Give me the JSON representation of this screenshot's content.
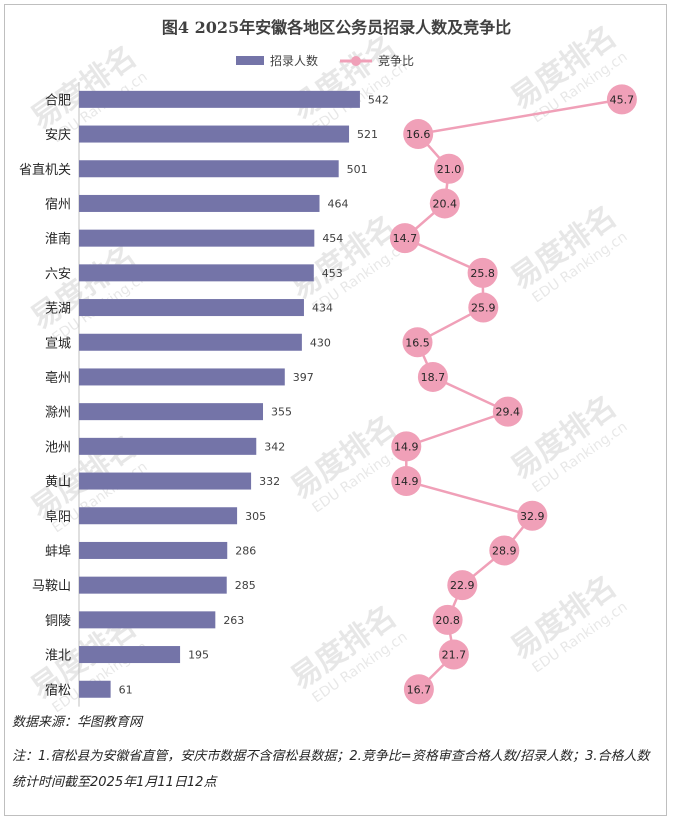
{
  "chart_data": {
    "type": "bar",
    "orientation": "horizontal",
    "title": "图4  2025年安徽各地区公务员招录人数及竞争比",
    "categories": [
      "合肥",
      "安庆",
      "省直机关",
      "宿州",
      "淮南",
      "六安",
      "芜湖",
      "宣城",
      "亳州",
      "滁州",
      "池州",
      "黄山",
      "阜阳",
      "蚌埠",
      "马鞍山",
      "铜陵",
      "淮北",
      "宿松"
    ],
    "series": [
      {
        "name": "招录人数",
        "type": "bar",
        "color": "#7474a8",
        "values": [
          542,
          521,
          501,
          464,
          454,
          453,
          434,
          430,
          397,
          355,
          342,
          332,
          305,
          286,
          285,
          263,
          195,
          61
        ]
      },
      {
        "name": "竞争比",
        "type": "line",
        "color": "#f0a0b8",
        "values": [
          45.7,
          16.6,
          21.0,
          20.4,
          14.7,
          25.8,
          25.9,
          16.5,
          18.7,
          29.4,
          14.9,
          14.9,
          32.9,
          28.9,
          22.9,
          20.8,
          21.7,
          16.7
        ],
        "labels": [
          "45.7",
          "16.6",
          "21.0",
          "20.4",
          "14.7",
          "25.8",
          "25.9",
          "16.5",
          "18.7",
          "29.4",
          "14.9",
          "14.9",
          "32.9",
          "28.9",
          "22.9",
          "20.8",
          "21.7",
          "16.7"
        ]
      }
    ],
    "legend": [
      "招录人数",
      "竞争比"
    ],
    "legend_position": "top",
    "grid": false
  },
  "watermark": {
    "brand": "易度排名",
    "site": "EDU Ranking.cn"
  },
  "footer": {
    "source": "数据来源：华图教育网",
    "note": "注：1.宿松县为安徽省直管，安庆市数据不含宿松县数据；2.竞争比=资格审查合格人数/招录人数；3.合格人数统计时间截至2025年1月11日12点"
  }
}
